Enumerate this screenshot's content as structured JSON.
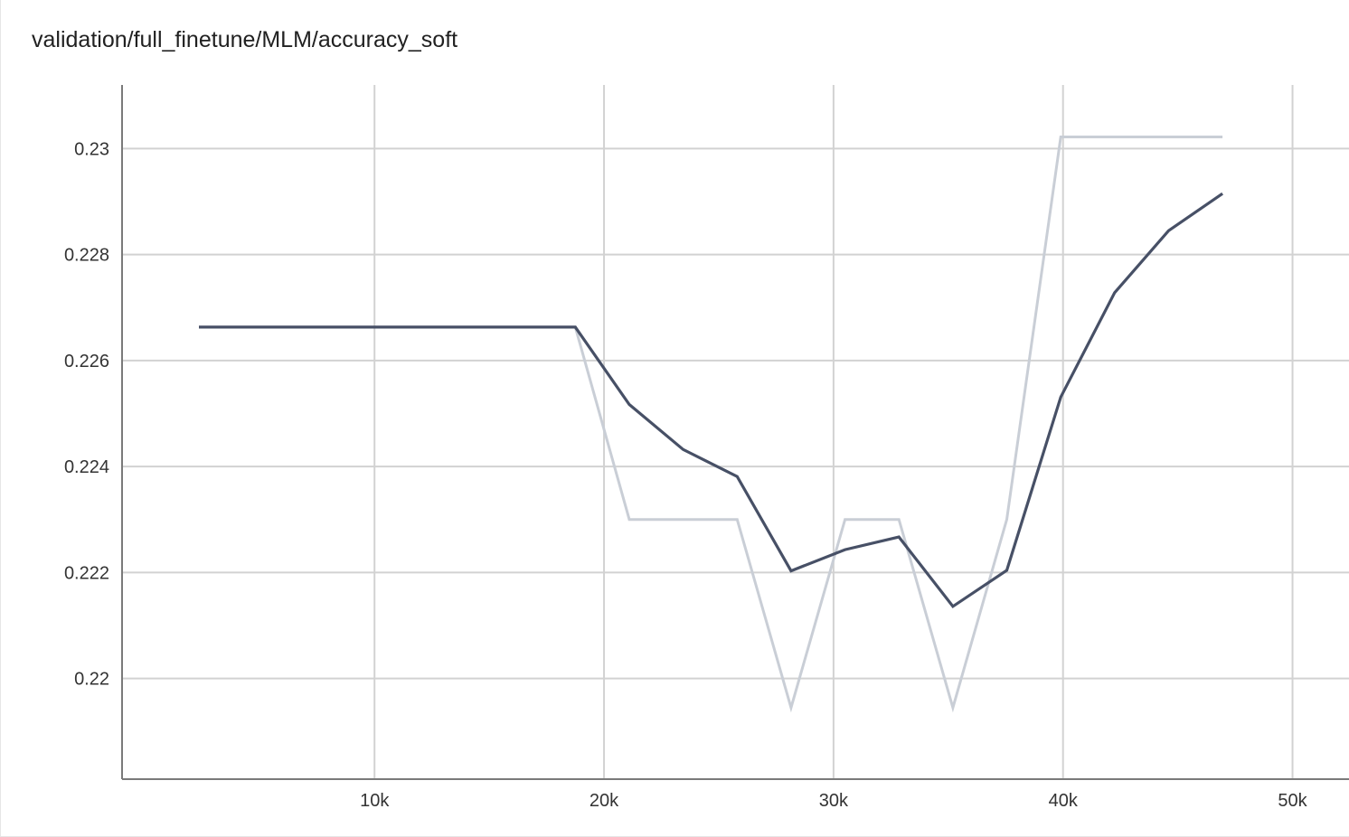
{
  "chart_data": {
    "type": "line",
    "title": "validation/full_finetune/MLM/accuracy_soft",
    "xlabel": "",
    "ylabel": "",
    "xlim": [
      -1000,
      52500
    ],
    "ylim": [
      0.2181,
      0.2312
    ],
    "x_ticks": [
      10000,
      20000,
      30000,
      40000,
      50000
    ],
    "x_tick_labels": [
      "10k",
      "20k",
      "30k",
      "40k",
      "50k"
    ],
    "y_ticks": [
      0.22,
      0.222,
      0.224,
      0.226,
      0.228,
      0.23
    ],
    "y_tick_labels": [
      "0.22",
      "0.222",
      "0.224",
      "0.226",
      "0.228",
      "0.23"
    ],
    "grid": true,
    "series": [
      {
        "role": "raw",
        "color": "#c9ced6",
        "x": [
          2350,
          18750,
          21100,
          23450,
          25800,
          28150,
          30500,
          32850,
          35200,
          37550,
          39900,
          42250,
          44600,
          46950
        ],
        "y": [
          0.22663,
          0.22663,
          0.223,
          0.223,
          0.223,
          0.21945,
          0.223,
          0.223,
          0.21945,
          0.223,
          0.23022,
          0.23022,
          0.23022,
          0.23022
        ]
      },
      {
        "role": "smoothed",
        "color": "#475066",
        "x": [
          2350,
          18750,
          21100,
          23450,
          25800,
          28150,
          30500,
          32850,
          35200,
          37550,
          39900,
          42250,
          44600,
          46950
        ],
        "y": [
          0.22663,
          0.22663,
          0.22517,
          0.22432,
          0.22381,
          0.22203,
          0.22243,
          0.22267,
          0.22136,
          0.22204,
          0.22531,
          0.22728,
          0.22845,
          0.22915
        ]
      }
    ]
  }
}
